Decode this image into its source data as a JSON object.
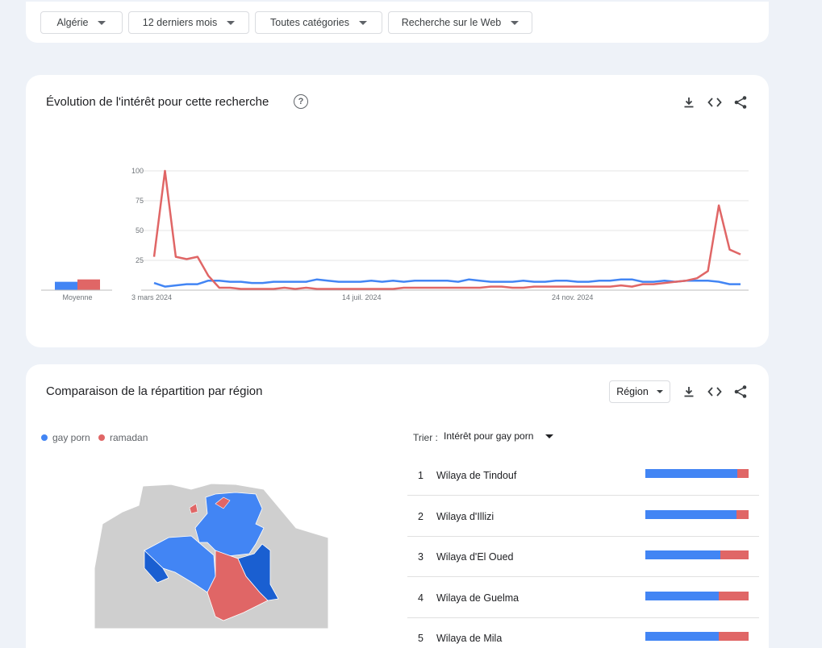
{
  "filters": {
    "country": "Algérie",
    "period": "12 derniers mois",
    "category": "Toutes catégories",
    "search_type": "Recherche sur le Web"
  },
  "trend": {
    "title": "Évolution de l'intérêt pour cette recherche",
    "average_label": "Moyenne"
  },
  "chart_data": {
    "type": "line",
    "title": "Évolution de l'intérêt pour cette recherche",
    "y_ticks": [
      "100",
      "75",
      "50",
      "25"
    ],
    "x_tick_labels": [
      "3 mars 2024",
      "14 juil. 2024",
      "24 nov. 2024"
    ],
    "ylim": [
      0,
      100
    ],
    "grid": true,
    "series": [
      {
        "name": "gay porn",
        "color": "#4285f4",
        "average": 7,
        "values": [
          6,
          3,
          4,
          5,
          5,
          8,
          8,
          7,
          7,
          6,
          6,
          7,
          7,
          7,
          7,
          9,
          8,
          7,
          7,
          7,
          8,
          7,
          8,
          7,
          8,
          8,
          8,
          8,
          7,
          9,
          8,
          7,
          7,
          7,
          8,
          7,
          7,
          8,
          8,
          7,
          7,
          8,
          8,
          9,
          9,
          7,
          7,
          8,
          7,
          8,
          8,
          8,
          7,
          5,
          5
        ]
      },
      {
        "name": "ramadan",
        "color": "#e06666",
        "average": 9,
        "values": [
          28,
          100,
          28,
          26,
          28,
          12,
          2,
          2,
          1,
          1,
          1,
          1,
          2,
          1,
          2,
          1,
          1,
          1,
          1,
          1,
          1,
          1,
          1,
          2,
          2,
          2,
          2,
          2,
          2,
          2,
          2,
          3,
          3,
          2,
          2,
          3,
          3,
          3,
          3,
          3,
          3,
          3,
          3,
          4,
          3,
          5,
          5,
          6,
          7,
          8,
          10,
          16,
          71,
          34,
          30
        ]
      }
    ]
  },
  "region": {
    "title": "Comparaison de la répartition par région",
    "select_label": "Région",
    "legend": [
      {
        "name": "gay porn",
        "color": "#4285f4"
      },
      {
        "name": "ramadan",
        "color": "#e06666"
      }
    ],
    "sort_label": "Trier :",
    "sort_value": "Intérêt pour gay porn",
    "rows": [
      {
        "rank": "1",
        "name": "Wilaya de Tindouf",
        "blue": 89,
        "red": 11
      },
      {
        "rank": "2",
        "name": "Wilaya d'Illizi",
        "blue": 88,
        "red": 12
      },
      {
        "rank": "3",
        "name": "Wilaya d'El Oued",
        "blue": 73,
        "red": 27
      },
      {
        "rank": "4",
        "name": "Wilaya de Guelma",
        "blue": 71,
        "red": 29
      },
      {
        "rank": "5",
        "name": "Wilaya de Mila",
        "blue": 71,
        "red": 29
      }
    ]
  },
  "icons": {
    "download": "download-icon",
    "embed": "embed-code-icon",
    "share": "share-icon",
    "help": "help-icon"
  }
}
